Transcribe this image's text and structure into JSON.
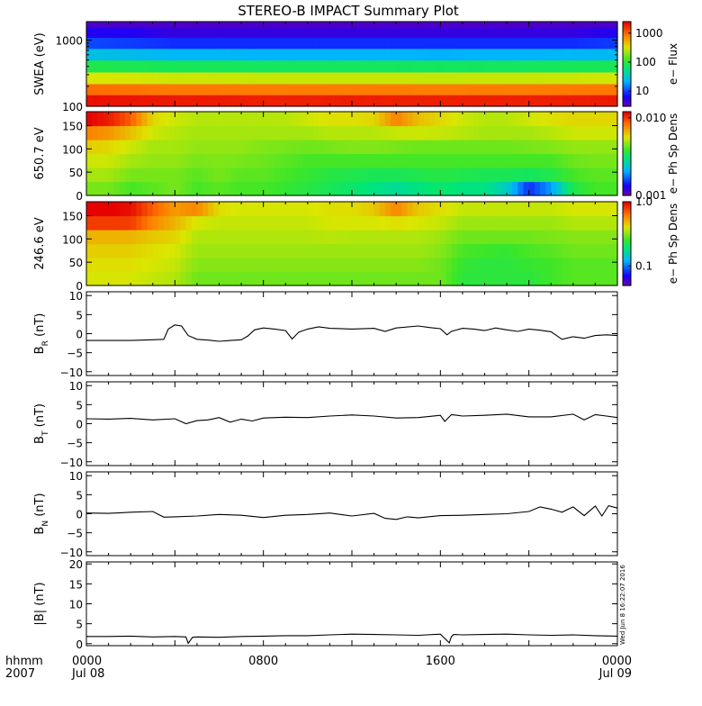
{
  "title": "STEREO-B IMPACT Summary Plot",
  "stamp": "Wed Jun  8 16:22:07 2016",
  "colors": {
    "axis": "#000000",
    "line": "#000000",
    "background": "#ffffff"
  },
  "chart_data": [
    {
      "type": "heatmap",
      "id": "swea",
      "ylabel": "SWEA (eV)",
      "ylim": [
        100,
        1900
      ],
      "yscale": "log",
      "yticks": [
        {
          "v": 100,
          "label": "100"
        },
        {
          "v": 1000,
          "label": "1000"
        }
      ],
      "colorbar": {
        "label": "e− Flux",
        "scale": "log",
        "range": [
          3,
          2500
        ],
        "ticks": [
          {
            "v": 10,
            "label": "10"
          },
          {
            "v": 100,
            "label": "100"
          },
          {
            "v": 1000,
            "label": "1000"
          }
        ]
      },
      "x": [
        0,
        2,
        4,
        6,
        8,
        10,
        12,
        14,
        16,
        18,
        20,
        22,
        24
      ],
      "y_bins_eV": [
        100,
        150,
        220,
        330,
        500,
        750,
        1100,
        1600,
        1900
      ],
      "z": [
        [
          2200,
          2100,
          2000,
          2000,
          1900,
          1900,
          1950,
          1900,
          1900,
          1900,
          1900,
          1950,
          2000
        ],
        [
          1000,
          950,
          900,
          900,
          880,
          870,
          880,
          870,
          860,
          870,
          880,
          900,
          920
        ],
        [
          330,
          320,
          300,
          300,
          290,
          290,
          290,
          290,
          285,
          290,
          290,
          300,
          310
        ],
        [
          90,
          85,
          80,
          80,
          78,
          77,
          78,
          77,
          76,
          77,
          78,
          80,
          82
        ],
        [
          28,
          26,
          24,
          24,
          23,
          23,
          23,
          23,
          22,
          23,
          23,
          24,
          25
        ],
        [
          11,
          10,
          9,
          9,
          9,
          9,
          9,
          9,
          9,
          9,
          9,
          9,
          10
        ],
        [
          6,
          6,
          5,
          5,
          5,
          5,
          5,
          5,
          5,
          5,
          5,
          5,
          6
        ],
        [
          4,
          4,
          4,
          4,
          4,
          4,
          4,
          4,
          4,
          4,
          4,
          4,
          4
        ]
      ]
    },
    {
      "type": "heatmap",
      "id": "pad650",
      "ylabel": "650.7 eV",
      "ylim": [
        0,
        180
      ],
      "yticks": [
        {
          "v": 0,
          "label": "0"
        },
        {
          "v": 50,
          "label": "50"
        },
        {
          "v": 100,
          "label": "100"
        },
        {
          "v": 150,
          "label": "150"
        }
      ],
      "colorbar": {
        "label": "e− Ph Sp Dens",
        "scale": "log",
        "range": [
          0.001,
          0.012
        ],
        "ticks": [
          {
            "v": 0.001,
            "label": "0.001"
          },
          {
            "v": 0.01,
            "label": "0.010"
          }
        ]
      },
      "x": [
        0,
        1,
        2,
        3,
        4,
        5,
        6,
        7,
        8,
        9,
        10,
        11,
        12,
        13,
        14,
        15,
        16,
        17,
        18,
        19,
        20,
        21,
        22,
        23,
        24
      ],
      "y_bins_deg": [
        0,
        30,
        60,
        90,
        120,
        150,
        180
      ],
      "z": [
        [
          0.0045,
          0.0045,
          0.004,
          0.0042,
          0.0045,
          0.004,
          0.0042,
          0.004,
          0.004,
          0.0038,
          0.0036,
          0.0034,
          0.0032,
          0.003,
          0.0028,
          0.003,
          0.0032,
          0.003,
          0.003,
          0.0025,
          0.0015,
          0.002,
          0.0035,
          0.004,
          0.004
        ],
        [
          0.005,
          0.005,
          0.0045,
          0.0045,
          0.0045,
          0.0042,
          0.0045,
          0.0042,
          0.0042,
          0.004,
          0.0038,
          0.0036,
          0.0035,
          0.0034,
          0.0034,
          0.0035,
          0.0036,
          0.0035,
          0.0034,
          0.0034,
          0.0033,
          0.0035,
          0.004,
          0.0042,
          0.0042
        ],
        [
          0.0055,
          0.0055,
          0.005,
          0.0048,
          0.0048,
          0.0045,
          0.0046,
          0.0045,
          0.0044,
          0.0042,
          0.004,
          0.004,
          0.004,
          0.004,
          0.004,
          0.004,
          0.004,
          0.004,
          0.004,
          0.004,
          0.004,
          0.004,
          0.0044,
          0.0045,
          0.0045
        ],
        [
          0.0062,
          0.006,
          0.0055,
          0.005,
          0.005,
          0.0048,
          0.0048,
          0.0048,
          0.0046,
          0.0045,
          0.0044,
          0.0045,
          0.0046,
          0.0046,
          0.0045,
          0.0044,
          0.0044,
          0.0044,
          0.0044,
          0.0044,
          0.0045,
          0.0046,
          0.0048,
          0.0048,
          0.0048
        ],
        [
          0.008,
          0.0075,
          0.0065,
          0.0055,
          0.0052,
          0.005,
          0.005,
          0.005,
          0.005,
          0.005,
          0.005,
          0.0052,
          0.0052,
          0.0052,
          0.0054,
          0.0055,
          0.0054,
          0.0052,
          0.005,
          0.005,
          0.005,
          0.0052,
          0.0055,
          0.0055,
          0.0055
        ],
        [
          0.012,
          0.011,
          0.009,
          0.006,
          0.0055,
          0.0052,
          0.0052,
          0.0052,
          0.0052,
          0.0052,
          0.0055,
          0.0058,
          0.0058,
          0.006,
          0.008,
          0.0065,
          0.006,
          0.0055,
          0.0052,
          0.0052,
          0.0055,
          0.0058,
          0.006,
          0.006,
          0.006
        ]
      ]
    },
    {
      "type": "heatmap",
      "id": "pad246",
      "ylabel": "246.6 eV",
      "ylim": [
        0,
        180
      ],
      "yticks": [
        {
          "v": 0,
          "label": "0"
        },
        {
          "v": 50,
          "label": "50"
        },
        {
          "v": 100,
          "label": "100"
        },
        {
          "v": 150,
          "label": "150"
        }
      ],
      "colorbar": {
        "label": "e− Ph Sp Dens",
        "scale": "log",
        "range": [
          0.05,
          1.0
        ],
        "ticks": [
          {
            "v": 0.1,
            "label": "0.1"
          },
          {
            "v": 1,
            "label": "1.0"
          }
        ]
      },
      "x": [
        0,
        1,
        2,
        3,
        4,
        5,
        6,
        7,
        8,
        9,
        10,
        11,
        12,
        13,
        14,
        15,
        16,
        17,
        18,
        19,
        20,
        21,
        22,
        23,
        24
      ],
      "y_bins_deg": [
        0,
        30,
        60,
        90,
        120,
        150,
        180
      ],
      "z": [
        [
          0.4,
          0.4,
          0.4,
          0.38,
          0.36,
          0.3,
          0.3,
          0.3,
          0.3,
          0.3,
          0.3,
          0.3,
          0.3,
          0.3,
          0.3,
          0.3,
          0.3,
          0.24,
          0.24,
          0.24,
          0.24,
          0.26,
          0.28,
          0.28,
          0.28
        ],
        [
          0.42,
          0.42,
          0.42,
          0.4,
          0.38,
          0.32,
          0.32,
          0.32,
          0.32,
          0.32,
          0.32,
          0.32,
          0.32,
          0.32,
          0.32,
          0.32,
          0.3,
          0.25,
          0.24,
          0.24,
          0.25,
          0.26,
          0.28,
          0.28,
          0.28
        ],
        [
          0.45,
          0.45,
          0.45,
          0.42,
          0.4,
          0.34,
          0.34,
          0.34,
          0.34,
          0.34,
          0.34,
          0.34,
          0.34,
          0.34,
          0.34,
          0.34,
          0.32,
          0.27,
          0.26,
          0.25,
          0.27,
          0.28,
          0.3,
          0.3,
          0.3
        ],
        [
          0.5,
          0.5,
          0.5,
          0.46,
          0.44,
          0.36,
          0.36,
          0.36,
          0.36,
          0.36,
          0.36,
          0.37,
          0.36,
          0.36,
          0.36,
          0.36,
          0.34,
          0.3,
          0.3,
          0.3,
          0.3,
          0.31,
          0.32,
          0.32,
          0.32
        ],
        [
          0.8,
          0.8,
          0.8,
          0.6,
          0.5,
          0.4,
          0.38,
          0.38,
          0.38,
          0.38,
          0.38,
          0.4,
          0.4,
          0.4,
          0.42,
          0.4,
          0.38,
          0.34,
          0.34,
          0.34,
          0.34,
          0.34,
          0.36,
          0.36,
          0.36
        ],
        [
          1.0,
          1.0,
          0.95,
          0.7,
          0.55,
          0.6,
          0.42,
          0.4,
          0.4,
          0.4,
          0.4,
          0.42,
          0.42,
          0.46,
          0.6,
          0.46,
          0.42,
          0.38,
          0.38,
          0.38,
          0.38,
          0.38,
          0.4,
          0.4,
          0.4
        ]
      ]
    },
    {
      "type": "line",
      "id": "br",
      "ylabel": "B",
      "ysub": "R",
      "yunit": " (nT)",
      "ylim": [
        -11,
        11
      ],
      "yticks": [
        {
          "v": -10,
          "label": "−10"
        },
        {
          "v": -5,
          "label": "−5"
        },
        {
          "v": 0,
          "label": "0"
        },
        {
          "v": 5,
          "label": "5"
        },
        {
          "v": 10,
          "label": "10"
        }
      ],
      "x": [
        0,
        1,
        2,
        3,
        3.5,
        3.7,
        4,
        4.3,
        4.6,
        5,
        5.5,
        6,
        6.5,
        7,
        7.3,
        7.6,
        8,
        8.5,
        9,
        9.3,
        9.6,
        10,
        10.5,
        11,
        12,
        13,
        13.5,
        14,
        15,
        15.5,
        16,
        16.3,
        16.5,
        17,
        17.5,
        18,
        18.5,
        19,
        19.5,
        20,
        20.5,
        21,
        21.5,
        22,
        22.5,
        23,
        23.5,
        24
      ],
      "y": [
        -1.8,
        -1.8,
        -1.8,
        -1.6,
        -1.5,
        1.2,
        2.3,
        2.0,
        -0.5,
        -1.5,
        -1.7,
        -2.0,
        -1.8,
        -1.6,
        -0.6,
        1.0,
        1.5,
        1.2,
        0.8,
        -1.4,
        0.4,
        1.2,
        1.8,
        1.4,
        1.2,
        1.4,
        0.6,
        1.5,
        2.0,
        1.6,
        1.3,
        -0.3,
        0.6,
        1.4,
        1.2,
        0.8,
        1.5,
        1.0,
        0.6,
        1.2,
        0.9,
        0.5,
        -1.5,
        -0.8,
        -1.2,
        -0.5,
        -0.3,
        -0.5
      ]
    },
    {
      "type": "line",
      "id": "bt",
      "ylabel": "B",
      "ysub": "T",
      "yunit": " (nT)",
      "ylim": [
        -11,
        11
      ],
      "yticks": [
        {
          "v": -10,
          "label": "−10"
        },
        {
          "v": -5,
          "label": "−5"
        },
        {
          "v": 0,
          "label": "0"
        },
        {
          "v": 5,
          "label": "5"
        },
        {
          "v": 10,
          "label": "10"
        }
      ],
      "x": [
        0,
        1,
        2,
        3,
        4,
        4.5,
        5,
        5.5,
        6,
        6.5,
        7,
        7.5,
        8,
        9,
        10,
        11,
        12,
        13,
        14,
        15,
        16,
        16.2,
        16.5,
        17,
        18,
        19,
        20,
        21,
        22,
        22.5,
        23,
        23.5,
        24
      ],
      "y": [
        1.3,
        1.2,
        1.4,
        1.0,
        1.3,
        0.0,
        0.8,
        1.0,
        1.6,
        0.4,
        1.2,
        0.7,
        1.5,
        1.7,
        1.6,
        2.0,
        2.3,
        2.0,
        1.5,
        1.6,
        2.2,
        0.6,
        2.4,
        2.0,
        2.2,
        2.5,
        1.8,
        1.8,
        2.5,
        1.0,
        2.4,
        2.0,
        1.6
      ]
    },
    {
      "type": "line",
      "id": "bn",
      "ylabel": "B",
      "ysub": "N",
      "yunit": " (nT)",
      "ylim": [
        -11,
        11
      ],
      "yticks": [
        {
          "v": -10,
          "label": "−10"
        },
        {
          "v": -5,
          "label": "−5"
        },
        {
          "v": 0,
          "label": "0"
        },
        {
          "v": 5,
          "label": "5"
        },
        {
          "v": 10,
          "label": "10"
        }
      ],
      "x": [
        0,
        1,
        2,
        3,
        3.5,
        4,
        5,
        6,
        7,
        8,
        9,
        10,
        11,
        12,
        13,
        13.5,
        14,
        14.5,
        15,
        16,
        17,
        18,
        19,
        20,
        20.5,
        21,
        21.5,
        22,
        22.5,
        23,
        23.3,
        23.6,
        24
      ],
      "y": [
        0.2,
        0.1,
        0.4,
        0.6,
        -0.9,
        -0.8,
        -0.6,
        -0.2,
        -0.4,
        -1.0,
        -0.4,
        -0.2,
        0.2,
        -0.6,
        0.1,
        -1.2,
        -1.5,
        -0.8,
        -1.1,
        -0.5,
        -0.4,
        -0.2,
        0.0,
        0.6,
        1.8,
        1.2,
        0.4,
        1.8,
        -0.5,
        2.0,
        -0.6,
        2.1,
        1.5
      ]
    },
    {
      "type": "line",
      "id": "bmag",
      "ylabel": "|B| (nT)",
      "ylim": [
        -0.5,
        20.5
      ],
      "yticks": [
        {
          "v": 0,
          "label": "0"
        },
        {
          "v": 5,
          "label": "5"
        },
        {
          "v": 10,
          "label": "10"
        },
        {
          "v": 15,
          "label": "15"
        },
        {
          "v": 20,
          "label": "20"
        }
      ],
      "x": [
        0,
        1,
        2,
        3,
        4,
        4.5,
        4.6,
        4.8,
        5,
        6,
        7,
        8,
        9,
        10,
        11,
        12,
        13,
        14,
        15,
        16,
        16.4,
        16.5,
        16.6,
        17,
        18,
        19,
        20,
        21,
        22,
        23,
        24
      ],
      "y": [
        1.8,
        1.8,
        1.9,
        1.7,
        1.8,
        1.7,
        0.1,
        1.6,
        1.7,
        1.6,
        1.8,
        1.9,
        2.0,
        2.0,
        2.2,
        2.4,
        2.3,
        2.2,
        2.1,
        2.4,
        0.2,
        1.8,
        2.3,
        2.2,
        2.3,
        2.4,
        2.2,
        2.1,
        2.2,
        2.0,
        1.9
      ]
    }
  ],
  "xaxis": {
    "ticks": [
      {
        "x": 0,
        "l1": "0000",
        "l2": "Jul 08"
      },
      {
        "x": 8,
        "l1": "0800",
        "l2": ""
      },
      {
        "x": 16,
        "l1": "1600",
        "l2": ""
      },
      {
        "x": 24,
        "l1": "0000",
        "l2": "Jul 09"
      }
    ],
    "label1": "hhmm",
    "label2": "2007",
    "xlim": [
      0,
      24
    ]
  }
}
